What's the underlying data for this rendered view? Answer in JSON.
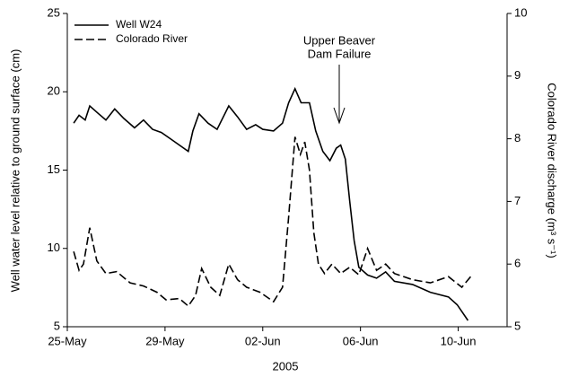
{
  "chart_data": {
    "type": "line",
    "x_title": "2005",
    "y_title": "Well water level relative to ground surface (cm)",
    "y2_title": "Colorado River discharge (m³ s⁻¹)",
    "annotation": [
      "Upper Beaver",
      "Dam Failure"
    ],
    "xlim": [
      0,
      18
    ],
    "xticks": [
      {
        "value": 0,
        "label": "25-May"
      },
      {
        "value": 4,
        "label": "29-May"
      },
      {
        "value": 8,
        "label": "02-Jun"
      },
      {
        "value": 12,
        "label": "06-Jun"
      },
      {
        "value": 16,
        "label": "10-Jun"
      }
    ],
    "ylim": [
      5,
      25
    ],
    "yticks": [
      5,
      10,
      15,
      20,
      25
    ],
    "y2lim": [
      5,
      10
    ],
    "y2ticks": [
      5,
      6,
      7,
      8,
      9,
      10
    ],
    "legend": "upper-left",
    "series": [
      {
        "name": "Well W24",
        "color": "#000000",
        "dash": "solid",
        "x": [
          0.26,
          0.48,
          0.73,
          0.92,
          1.28,
          1.58,
          1.94,
          2.31,
          2.75,
          3.12,
          3.49,
          3.85,
          4.22,
          4.95,
          5.14,
          5.39,
          5.76,
          6.13,
          6.61,
          6.97,
          7.34,
          7.71,
          8.0,
          8.44,
          8.81,
          9.06,
          9.32,
          9.57,
          9.91,
          10.17,
          10.46,
          10.75,
          11.01,
          11.19,
          11.38,
          11.56,
          11.74,
          11.93,
          12.29,
          12.66,
          13.03,
          13.39,
          14.13,
          14.86,
          15.6,
          15.96,
          16.4
        ],
        "values": [
          18.0,
          18.5,
          18.2,
          19.1,
          18.6,
          18.2,
          18.9,
          18.3,
          17.7,
          18.2,
          17.6,
          17.4,
          17.0,
          16.2,
          17.5,
          18.6,
          18.0,
          17.6,
          19.1,
          18.4,
          17.6,
          17.9,
          17.6,
          17.5,
          18.0,
          19.3,
          20.2,
          19.3,
          19.3,
          17.5,
          16.2,
          15.6,
          16.4,
          16.6,
          15.7,
          13.0,
          10.5,
          8.8,
          8.3,
          8.1,
          8.5,
          7.9,
          7.7,
          7.2,
          6.9,
          6.4,
          5.4
        ]
      },
      {
        "name": "Colorado River",
        "color": "#000000",
        "dash": "dashed",
        "axis": "y2",
        "x": [
          0.26,
          0.48,
          0.66,
          0.92,
          1.21,
          1.58,
          2.02,
          2.57,
          3.12,
          3.67,
          4.04,
          4.59,
          4.95,
          5.25,
          5.5,
          5.87,
          6.24,
          6.61,
          6.97,
          7.34,
          7.89,
          8.44,
          8.81,
          9.06,
          9.32,
          9.54,
          9.72,
          9.91,
          10.09,
          10.28,
          10.53,
          10.83,
          11.19,
          11.56,
          11.93,
          12.29,
          12.66,
          13.03,
          13.39,
          14.13,
          14.86,
          15.6,
          16.15,
          16.51
        ],
        "values": [
          6.2,
          5.9,
          6.0,
          6.58,
          6.05,
          5.85,
          5.88,
          5.7,
          5.65,
          5.55,
          5.43,
          5.45,
          5.33,
          5.5,
          5.93,
          5.63,
          5.5,
          6.0,
          5.75,
          5.63,
          5.55,
          5.4,
          5.63,
          6.75,
          8.03,
          7.75,
          7.95,
          7.5,
          6.5,
          6.0,
          5.85,
          6.0,
          5.85,
          5.95,
          5.83,
          6.25,
          5.9,
          6.0,
          5.85,
          5.75,
          5.7,
          5.8,
          5.63,
          5.8
        ]
      }
    ]
  }
}
